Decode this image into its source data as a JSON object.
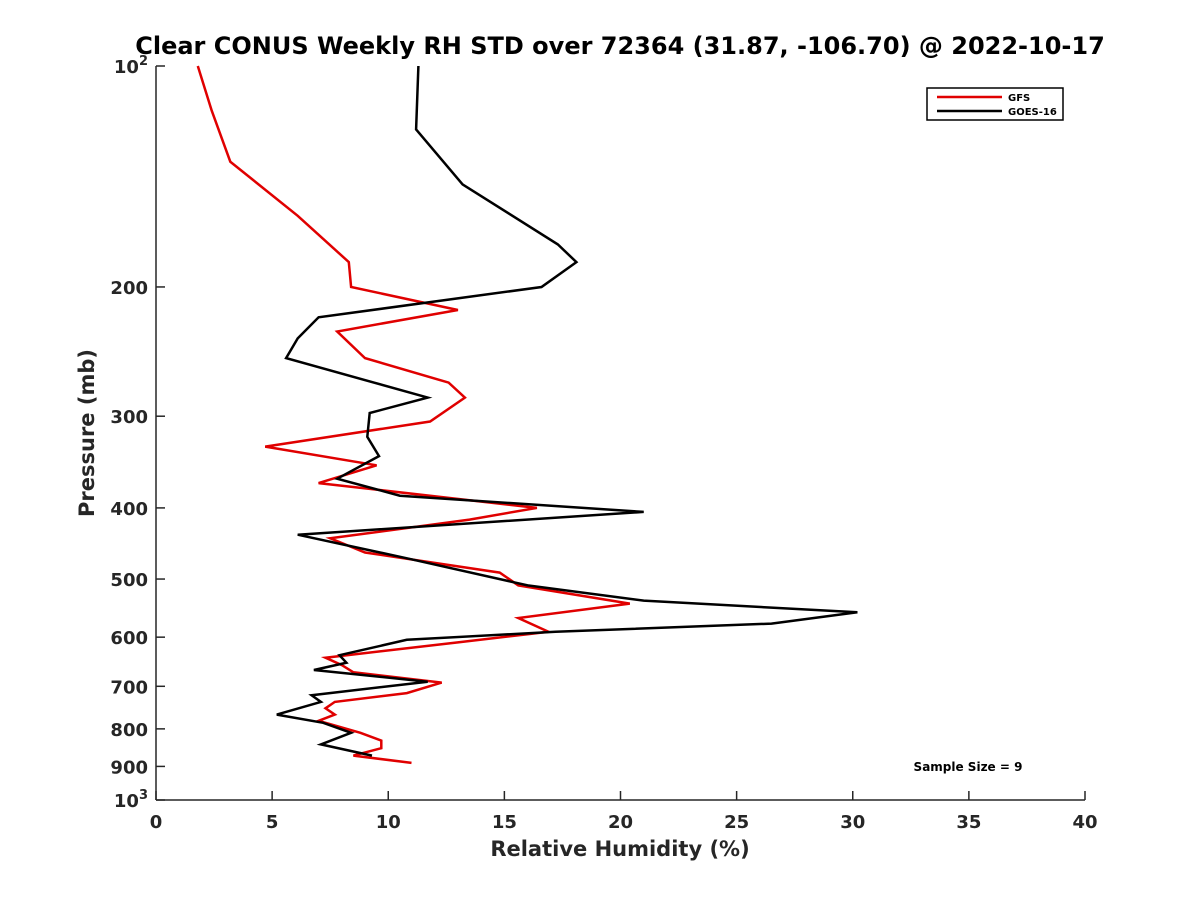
{
  "chart_data": {
    "type": "line",
    "title": "Clear CONUS Weekly RH STD over 72364 (31.87, -106.70) @ 2022-10-17",
    "xlabel": "Relative Humidity (%)",
    "ylabel": "Pressure (mb)",
    "xlim": [
      0,
      40
    ],
    "ylim": [
      100,
      1000
    ],
    "y_scale": "log",
    "y_reversed": true,
    "grid": false,
    "legend_position": "top-right",
    "x_ticks": [
      0,
      5,
      10,
      15,
      20,
      25,
      30,
      35,
      40
    ],
    "x_tick_labels": [
      "0",
      "5",
      "10",
      "15",
      "20",
      "25",
      "30",
      "35",
      "40"
    ],
    "y_ticks": [
      100,
      200,
      300,
      400,
      500,
      600,
      700,
      800,
      900,
      1000
    ],
    "y_tick_labels": [
      "10^2",
      "200",
      "300",
      "400",
      "500",
      "600",
      "700",
      "800",
      "900",
      "10^3"
    ],
    "annotation": "Sample Size = 9",
    "series": [
      {
        "name": "GFS",
        "color": "#e00000",
        "points": [
          [
            1.8,
            100
          ],
          [
            2.4,
            115
          ],
          [
            3.2,
            135
          ],
          [
            6.1,
            160
          ],
          [
            8.3,
            185
          ],
          [
            8.4,
            200
          ],
          [
            13.0,
            215
          ],
          [
            7.8,
            230
          ],
          [
            9.0,
            250
          ],
          [
            12.6,
            270
          ],
          [
            13.3,
            283
          ],
          [
            11.8,
            305
          ],
          [
            4.7,
            330
          ],
          [
            9.5,
            350
          ],
          [
            7.0,
            370
          ],
          [
            16.4,
            400
          ],
          [
            13.5,
            415
          ],
          [
            7.5,
            440
          ],
          [
            9.0,
            460
          ],
          [
            14.8,
            490
          ],
          [
            15.6,
            510
          ],
          [
            20.4,
            540
          ],
          [
            15.6,
            565
          ],
          [
            16.9,
            590
          ],
          [
            13.0,
            610
          ],
          [
            7.3,
            640
          ],
          [
            8.0,
            655
          ],
          [
            8.5,
            670
          ],
          [
            12.3,
            692
          ],
          [
            10.8,
            715
          ],
          [
            7.7,
            735
          ],
          [
            7.3,
            750
          ],
          [
            7.7,
            765
          ],
          [
            7.0,
            780
          ],
          [
            8.8,
            810
          ],
          [
            9.7,
            830
          ],
          [
            9.7,
            850
          ],
          [
            8.5,
            870
          ],
          [
            11.0,
            890
          ]
        ]
      },
      {
        "name": "GOES-16",
        "color": "#000000",
        "points": [
          [
            11.3,
            100
          ],
          [
            11.2,
            122
          ],
          [
            13.2,
            145
          ],
          [
            17.3,
            175
          ],
          [
            18.1,
            185
          ],
          [
            16.6,
            200
          ],
          [
            7.0,
            220
          ],
          [
            6.1,
            235
          ],
          [
            5.6,
            250
          ],
          [
            11.7,
            283
          ],
          [
            9.2,
            297
          ],
          [
            9.1,
            320
          ],
          [
            9.6,
            340
          ],
          [
            7.8,
            365
          ],
          [
            10.5,
            385
          ],
          [
            21.0,
            405
          ],
          [
            6.1,
            435
          ],
          [
            11.0,
            470
          ],
          [
            16.0,
            510
          ],
          [
            21.0,
            535
          ],
          [
            30.2,
            555
          ],
          [
            26.5,
            575
          ],
          [
            17.2,
            590
          ],
          [
            10.8,
            605
          ],
          [
            7.9,
            635
          ],
          [
            8.2,
            650
          ],
          [
            6.8,
            665
          ],
          [
            11.7,
            690
          ],
          [
            6.7,
            720
          ],
          [
            7.1,
            735
          ],
          [
            5.2,
            765
          ],
          [
            7.2,
            785
          ],
          [
            8.4,
            810
          ],
          [
            7.1,
            840
          ],
          [
            9.3,
            870
          ]
        ]
      }
    ]
  }
}
